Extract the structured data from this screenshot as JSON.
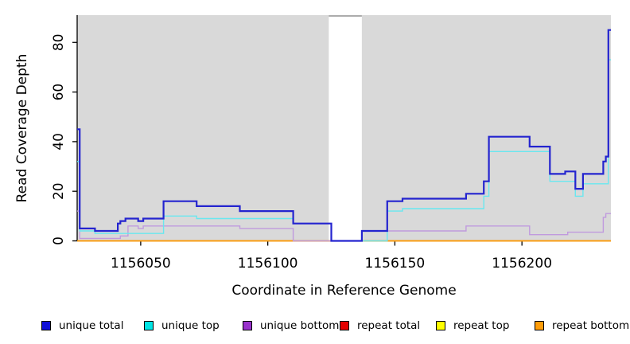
{
  "figure": {
    "background": "#ffffff",
    "panel_background": "#d9d9d9",
    "axis_color": "#000000"
  },
  "chart_data": {
    "type": "line",
    "subtype": "step-coverage",
    "title": "",
    "xlabel": "Coordinate in Reference Genome",
    "ylabel": "Read Coverage Depth",
    "xlim": [
      1156025,
      1156235
    ],
    "ylim": [
      0,
      91
    ],
    "grid": false,
    "legend_position": "bottom",
    "x_ticks": [
      1156050,
      1156100,
      1156150,
      1156200
    ],
    "x_tick_labels": [
      "1156050",
      "1156100",
      "1156150",
      "1156200"
    ],
    "y_ticks": [
      0,
      20,
      40,
      60,
      80
    ],
    "y_tick_labels": [
      "0",
      "20",
      "40",
      "60",
      "80"
    ],
    "gap_region": {
      "x_start": 1156124,
      "x_end": 1156137,
      "fill": "#ffffff",
      "top_line_color": "#909090"
    },
    "series": [
      {
        "name": "repeat total",
        "line_color": "#e60000",
        "line_width": 1.2,
        "points": [
          [
            1156025,
            0
          ],
          [
            1156235,
            0
          ]
        ]
      },
      {
        "name": "repeat top",
        "line_color": "#ffff00",
        "line_width": 1.2,
        "points": [
          [
            1156025,
            0
          ],
          [
            1156235,
            0
          ]
        ]
      },
      {
        "name": "repeat bottom",
        "line_color": "#ff9d09",
        "line_width": 1.8,
        "points": [
          [
            1156025,
            0
          ],
          [
            1156235,
            0
          ]
        ]
      },
      {
        "name": "unique bottom",
        "line_color": "#c09ade",
        "line_width": 1.4,
        "points": [
          [
            1156025,
            12
          ],
          [
            1156026,
            1
          ],
          [
            1156042,
            2
          ],
          [
            1156045,
            6
          ],
          [
            1156049,
            5
          ],
          [
            1156051,
            6
          ],
          [
            1156089,
            5
          ],
          [
            1156110,
            0
          ],
          [
            1156137,
            4
          ],
          [
            1156178,
            6
          ],
          [
            1156203,
            2.5
          ],
          [
            1156218,
            3.5
          ],
          [
            1156232,
            9.5
          ],
          [
            1156233,
            11
          ],
          [
            1156235,
            11
          ]
        ]
      },
      {
        "name": "unique top",
        "line_color": "#69e7ef",
        "line_width": 1.4,
        "points": [
          [
            1156025,
            32
          ],
          [
            1156026,
            4
          ],
          [
            1156032,
            3
          ],
          [
            1156059,
            10
          ],
          [
            1156072,
            9
          ],
          [
            1156110,
            7
          ],
          [
            1156125,
            0
          ],
          [
            1156147,
            12
          ],
          [
            1156153,
            13
          ],
          [
            1156185,
            18
          ],
          [
            1156187,
            36
          ],
          [
            1156211,
            24
          ],
          [
            1156221,
            18
          ],
          [
            1156224,
            23
          ],
          [
            1156234,
            73
          ],
          [
            1156235,
            73
          ]
        ]
      },
      {
        "name": "unique total",
        "line_color": "#2424cf",
        "line_width": 2.2,
        "points": [
          [
            1156025,
            45
          ],
          [
            1156026,
            5
          ],
          [
            1156032,
            4
          ],
          [
            1156041,
            7
          ],
          [
            1156042,
            8
          ],
          [
            1156044,
            9
          ],
          [
            1156049,
            8
          ],
          [
            1156051,
            9
          ],
          [
            1156059,
            16
          ],
          [
            1156072,
            14
          ],
          [
            1156089,
            12
          ],
          [
            1156110,
            7
          ],
          [
            1156125,
            0
          ],
          [
            1156137,
            4
          ],
          [
            1156147,
            16
          ],
          [
            1156153,
            17
          ],
          [
            1156178,
            19
          ],
          [
            1156185,
            24
          ],
          [
            1156187,
            42
          ],
          [
            1156203,
            38
          ],
          [
            1156211,
            27
          ],
          [
            1156217,
            28
          ],
          [
            1156221,
            21
          ],
          [
            1156224,
            27
          ],
          [
            1156232,
            32
          ],
          [
            1156233,
            34
          ],
          [
            1156234,
            85
          ],
          [
            1156235,
            85
          ]
        ]
      }
    ],
    "legend": [
      {
        "label": "unique total",
        "swatch_color": "#0f0fd8"
      },
      {
        "label": "unique top",
        "swatch_color": "#00e5e5"
      },
      {
        "label": "unique bottom",
        "swatch_color": "#9932cc"
      },
      {
        "label": "repeat total",
        "swatch_color": "#e60000"
      },
      {
        "label": "repeat top",
        "swatch_color": "#ffff00"
      },
      {
        "label": "repeat bottom",
        "swatch_color": "#ff9d09"
      }
    ]
  }
}
